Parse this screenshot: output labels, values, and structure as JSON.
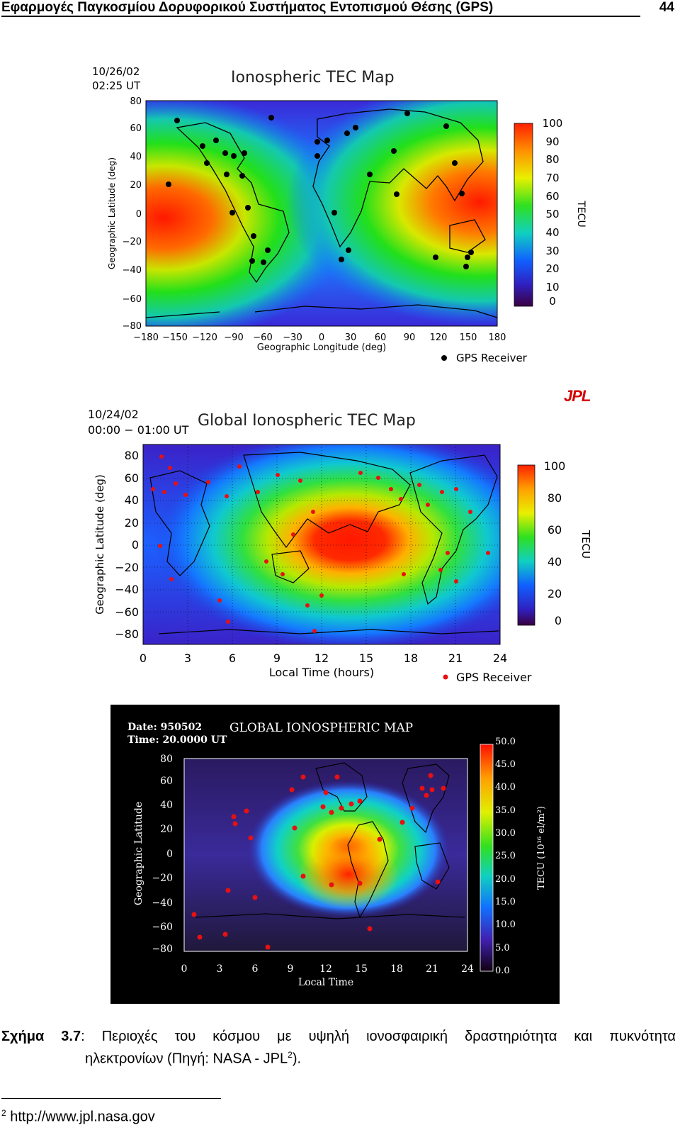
{
  "header": {
    "title": "Εφαρμογές Παγκοσμίου Δορυφορικού Συστήματος Εντοπισμού Θέσης (GPS)",
    "page_number": "44"
  },
  "colors": {
    "marker_black": "#000000",
    "marker_red": "#e81010",
    "jpl_red": "#d40000"
  },
  "map1": {
    "title": "Ionospheric TEC Map",
    "date": "10/26/02",
    "time": "02:25 UT",
    "ylabel": "Geographic Latitude (deg)",
    "xlabel": "Geographic Longitude (deg)",
    "yticks": [
      "80",
      "60",
      "40",
      "20",
      "0",
      "−20",
      "−40",
      "−60",
      "−80"
    ],
    "xticks": [
      "−180",
      "−150",
      "−120",
      "−90",
      "−60",
      "−30",
      "0",
      "30",
      "60",
      "90",
      "120",
      "150",
      "180"
    ],
    "colorbar_ticks": [
      "100",
      "90",
      "80",
      "70",
      "60",
      "50",
      "40",
      "30",
      "20",
      "10",
      "0"
    ],
    "colorbar_label": "TECU",
    "legend": "GPS Receiver",
    "logo": "JPL"
  },
  "map2": {
    "title": "Global Ionospheric TEC Map",
    "date": "10/24/02",
    "time": "00:00 − 01:00 UT",
    "ylabel": "Geographic Latitude (deg)",
    "xlabel": "Local Time (hours)",
    "yticks": [
      "80",
      "60",
      "40",
      "20",
      "0",
      "−20",
      "−40",
      "−60",
      "−80"
    ],
    "xticks": [
      "0",
      "3",
      "6",
      "9",
      "12",
      "15",
      "18",
      "21",
      "24"
    ],
    "colorbar_ticks": [
      "100",
      "80",
      "60",
      "40",
      "20",
      "0"
    ],
    "colorbar_label": "TECU",
    "legend": "GPS Receiver"
  },
  "map3": {
    "title": "GLOBAL IONOSPHERIC MAP",
    "date": "Date: 950502",
    "time": "Time: 20.0000 UT",
    "ylabel": "Geographic Latitude",
    "xlabel": "Local Time",
    "yticks": [
      "80",
      "60",
      "40",
      "20",
      "0",
      "−20",
      "−40",
      "−60",
      "−80"
    ],
    "xticks": [
      "0",
      "3",
      "6",
      "9",
      "12",
      "15",
      "18",
      "21",
      "24"
    ],
    "colorbar_ticks": [
      "50.0",
      "45.0",
      "40.0",
      "35.0",
      "30.0",
      "25.0",
      "20.0",
      "15.0",
      "10.0",
      "5.0",
      "0.0"
    ],
    "colorbar_label": "TECU (10¹⁶ el/m²)"
  },
  "caption": {
    "label": "Σχήμα 3.7",
    "text": ": Περιοχές του κόσμου με υψηλή ιονοσφαιρική δραστηριότητα και πυκνότητα",
    "text2": "ηλεκτρονίων (Πηγή: NASA - JPL",
    "footnote_ref": "2",
    "text3": ")."
  },
  "footnote": {
    "number": "2",
    "text": "http://www.jpl.nasa.gov"
  }
}
